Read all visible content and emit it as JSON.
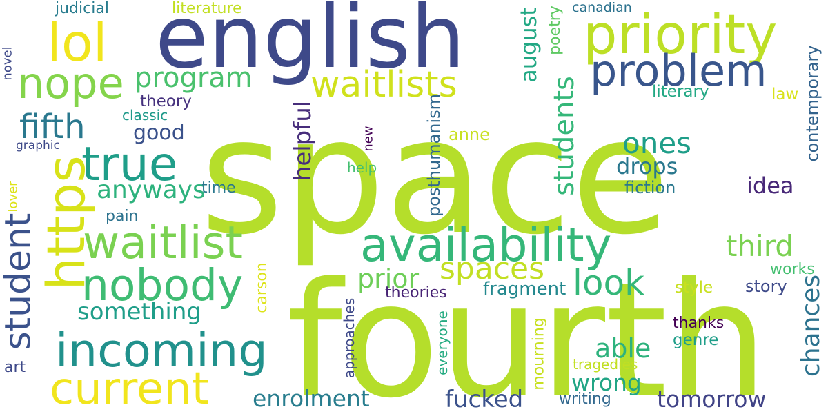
{
  "words": [
    {
      "text": "space",
      "color": "#b5de2b",
      "vertical": false
    },
    {
      "text": "fourth",
      "color": "#b5de2b",
      "vertical": false
    },
    {
      "text": "english",
      "color": "#3e4989",
      "vertical": false
    },
    {
      "text": "priority",
      "color": "#bddf26",
      "vertical": false
    },
    {
      "text": "problem",
      "color": "#39568c",
      "vertical": false
    },
    {
      "text": "lol",
      "color": "#f1e51d",
      "vertical": false
    },
    {
      "text": "nope",
      "color": "#84d44b",
      "vertical": false
    },
    {
      "text": "waitlists",
      "color": "#d0e11c",
      "vertical": false
    },
    {
      "text": "program",
      "color": "#4ac16d",
      "vertical": false
    },
    {
      "text": "true",
      "color": "#1f9e89",
      "vertical": false
    },
    {
      "text": "fifth",
      "color": "#2a788e",
      "vertical": false
    },
    {
      "text": "good",
      "color": "#3b528b",
      "vertical": false
    },
    {
      "text": "theory",
      "color": "#46327e",
      "vertical": false
    },
    {
      "text": "classic",
      "color": "#1f9a8a",
      "vertical": false
    },
    {
      "text": "graphic",
      "color": "#3e4989",
      "vertical": false
    },
    {
      "text": "anyways",
      "color": "#2db27d",
      "vertical": false
    },
    {
      "text": "time",
      "color": "#2a788e",
      "vertical": false
    },
    {
      "text": "pain",
      "color": "#2c728e",
      "vertical": false
    },
    {
      "text": "waitlist",
      "color": "#7ad151",
      "vertical": false
    },
    {
      "text": "availability",
      "color": "#35b779",
      "vertical": false
    },
    {
      "text": "nobody",
      "color": "#3fbc73",
      "vertical": false
    },
    {
      "text": "incoming",
      "color": "#21918c",
      "vertical": false
    },
    {
      "text": "current",
      "color": "#f1e51d",
      "vertical": false
    },
    {
      "text": "something",
      "color": "#1f9e89",
      "vertical": false
    },
    {
      "text": "art",
      "color": "#3e4989",
      "vertical": false
    },
    {
      "text": "spaces",
      "color": "#c2df23",
      "vertical": false
    },
    {
      "text": "prior",
      "color": "#6ece58",
      "vertical": false
    },
    {
      "text": "look",
      "color": "#35b779",
      "vertical": false
    },
    {
      "text": "third",
      "color": "#7ad151",
      "vertical": false
    },
    {
      "text": "idea",
      "color": "#482878",
      "vertical": false
    },
    {
      "text": "ones",
      "color": "#1f9e89",
      "vertical": false
    },
    {
      "text": "drops",
      "color": "#2a788e",
      "vertical": false
    },
    {
      "text": "fiction",
      "color": "#2a788e",
      "vertical": false
    },
    {
      "text": "anne",
      "color": "#c8e020",
      "vertical": false
    },
    {
      "text": "help",
      "color": "#44bf70",
      "vertical": false
    },
    {
      "text": "literary",
      "color": "#22a884",
      "vertical": false
    },
    {
      "text": "law",
      "color": "#d8e219",
      "vertical": false
    },
    {
      "text": "canadian",
      "color": "#2c728e",
      "vertical": false
    },
    {
      "text": "judicial",
      "color": "#287c8e",
      "vertical": false
    },
    {
      "text": "literature",
      "color": "#c2df23",
      "vertical": false
    },
    {
      "text": "theories",
      "color": "#482475",
      "vertical": false
    },
    {
      "text": "fragment",
      "color": "#23888e",
      "vertical": false
    },
    {
      "text": "style",
      "color": "#c8e020",
      "vertical": false
    },
    {
      "text": "story",
      "color": "#3e4a89",
      "vertical": false
    },
    {
      "text": "works",
      "color": "#44bf70",
      "vertical": false
    },
    {
      "text": "able",
      "color": "#2db27d",
      "vertical": false
    },
    {
      "text": "wrong",
      "color": "#21a585",
      "vertical": false
    },
    {
      "text": "enrolment",
      "color": "#287d8e",
      "vertical": false
    },
    {
      "text": "fucked",
      "color": "#3b528b",
      "vertical": false
    },
    {
      "text": "tomorrow",
      "color": "#414487",
      "vertical": false
    },
    {
      "text": "writing",
      "color": "#31688e",
      "vertical": false
    },
    {
      "text": "thanks",
      "color": "#440154",
      "vertical": false
    },
    {
      "text": "genre",
      "color": "#1f9e89",
      "vertical": false
    },
    {
      "text": "tragedies",
      "color": "#c2df23",
      "vertical": false
    },
    {
      "text": "https",
      "color": "#d8e219",
      "vertical": true
    },
    {
      "text": "student",
      "color": "#3b528b",
      "vertical": true
    },
    {
      "text": "lover",
      "color": "#dde318",
      "vertical": true
    },
    {
      "text": "novel",
      "color": "#3e4989",
      "vertical": true
    },
    {
      "text": "helpful",
      "color": "#472d7b",
      "vertical": true
    },
    {
      "text": "students",
      "color": "#35b779",
      "vertical": true
    },
    {
      "text": "august",
      "color": "#22a884",
      "vertical": true
    },
    {
      "text": "poetry",
      "color": "#5ec962",
      "vertical": true
    },
    {
      "text": "new",
      "color": "#450457",
      "vertical": true
    },
    {
      "text": "posthumanism",
      "color": "#31688e",
      "vertical": true
    },
    {
      "text": "contemporary",
      "color": "#33638d",
      "vertical": true
    },
    {
      "text": "chances",
      "color": "#2c728e",
      "vertical": true
    },
    {
      "text": "carson",
      "color": "#dde318",
      "vertical": true
    },
    {
      "text": "approaches",
      "color": "#3e4989",
      "vertical": true
    },
    {
      "text": "everyone",
      "color": "#25ab82",
      "vertical": true
    },
    {
      "text": "mourning",
      "color": "#c8e020",
      "vertical": true
    }
  ]
}
